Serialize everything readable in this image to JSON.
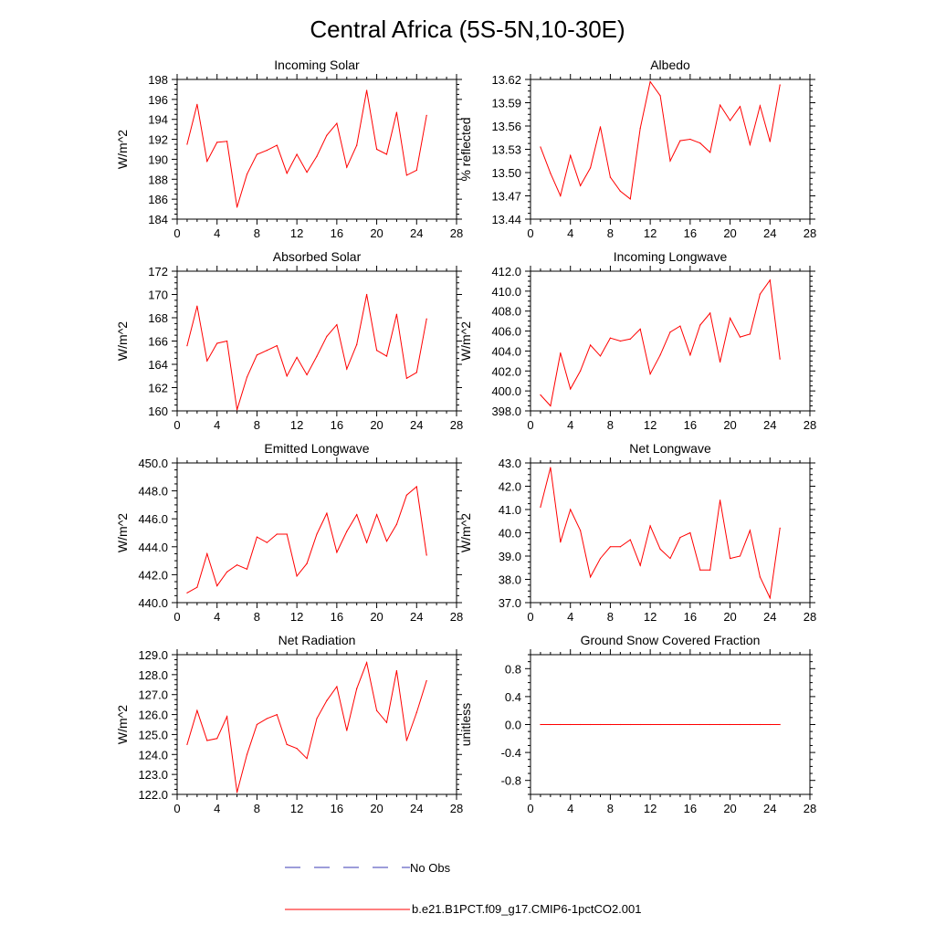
{
  "title": "Central Africa (5S-5N,10-30E)",
  "legend": {
    "items": [
      {
        "label": "No Obs",
        "color": "#3b3bb5",
        "dash": true
      },
      {
        "label": "b.e21.B1PCT.f09_g17.CMIP6-1pctCO2.001",
        "color": "#ff0000",
        "dash": false
      }
    ]
  },
  "chart_data": [
    {
      "type": "line",
      "title": "Incoming Solar",
      "ylabel": "W/m^2",
      "xlim": [
        0,
        28
      ],
      "ylim": [
        184,
        198
      ],
      "xticks": [
        "0",
        "4",
        "8",
        "12",
        "16",
        "20",
        "24",
        "28"
      ],
      "yticks": [
        "184",
        "186",
        "188",
        "190",
        "192",
        "194",
        "196",
        "198"
      ],
      "series": [
        {
          "color": "#ff0000",
          "x": [
            1,
            2,
            3,
            4,
            5,
            6,
            7,
            8,
            9,
            10,
            11,
            12,
            13,
            14,
            15,
            16,
            17,
            18,
            19,
            20,
            21,
            22,
            23,
            24,
            25
          ],
          "values": [
            191.5,
            195.5,
            189.8,
            191.7,
            191.8,
            185.2,
            188.5,
            190.5,
            190.9,
            191.4,
            188.6,
            190.5,
            188.7,
            190.3,
            192.4,
            193.6,
            189.2,
            191.4,
            196.9,
            191.0,
            190.5,
            194.7,
            188.4,
            188.9,
            194.4
          ]
        }
      ]
    },
    {
      "type": "line",
      "title": "Albedo",
      "ylabel": "% reflected",
      "xlim": [
        0,
        28
      ],
      "ylim": [
        13.44,
        13.62
      ],
      "xticks": [
        "0",
        "4",
        "8",
        "12",
        "16",
        "20",
        "24",
        "28"
      ],
      "yticks": [
        "13.44",
        "13.47",
        "13.50",
        "13.53",
        "13.56",
        "13.59",
        "13.62"
      ],
      "series": [
        {
          "color": "#ff0000",
          "x": [
            1,
            2,
            3,
            4,
            5,
            6,
            7,
            8,
            9,
            10,
            11,
            12,
            13,
            14,
            15,
            16,
            17,
            18,
            19,
            20,
            21,
            22,
            23,
            24,
            25
          ],
          "values": [
            13.533,
            13.499,
            13.47,
            13.522,
            13.483,
            13.506,
            13.559,
            13.494,
            13.476,
            13.466,
            13.557,
            13.617,
            13.599,
            13.515,
            13.541,
            13.543,
            13.538,
            13.526,
            13.587,
            13.567,
            13.585,
            13.536,
            13.586,
            13.54,
            13.613
          ]
        }
      ]
    },
    {
      "type": "line",
      "title": "Absorbed Solar",
      "ylabel": "W/m^2",
      "xlim": [
        0,
        28
      ],
      "ylim": [
        160,
        172
      ],
      "xticks": [
        "0",
        "4",
        "8",
        "12",
        "16",
        "20",
        "24",
        "28"
      ],
      "yticks": [
        "160",
        "162",
        "164",
        "166",
        "168",
        "170",
        "172"
      ],
      "series": [
        {
          "color": "#ff0000",
          "x": [
            1,
            2,
            3,
            4,
            5,
            6,
            7,
            8,
            9,
            10,
            11,
            12,
            13,
            14,
            15,
            16,
            17,
            18,
            19,
            20,
            21,
            22,
            23,
            24,
            25
          ],
          "values": [
            165.6,
            169.0,
            164.3,
            165.8,
            166.0,
            160.1,
            162.9,
            164.8,
            165.2,
            165.6,
            163.0,
            164.6,
            163.1,
            164.7,
            166.4,
            167.4,
            163.6,
            165.7,
            170.0,
            165.2,
            164.7,
            168.3,
            162.8,
            163.3,
            167.9
          ]
        }
      ]
    },
    {
      "type": "line",
      "title": "Incoming Longwave",
      "ylabel": "W/m^2",
      "xlim": [
        0,
        28
      ],
      "ylim": [
        398.0,
        412.0
      ],
      "xticks": [
        "0",
        "4",
        "8",
        "12",
        "16",
        "20",
        "24",
        "28"
      ],
      "yticks": [
        "398.0",
        "400.0",
        "402.0",
        "404.0",
        "406.0",
        "408.0",
        "410.0",
        "412.0"
      ],
      "series": [
        {
          "color": "#ff0000",
          "x": [
            1,
            2,
            3,
            4,
            5,
            6,
            7,
            8,
            9,
            10,
            11,
            12,
            13,
            14,
            15,
            16,
            17,
            18,
            19,
            20,
            21,
            22,
            23,
            24,
            25
          ],
          "values": [
            399.6,
            398.5,
            403.8,
            400.2,
            402.0,
            404.6,
            403.5,
            405.3,
            405.0,
            405.2,
            406.2,
            401.7,
            403.6,
            405.9,
            406.5,
            403.6,
            406.6,
            407.8,
            402.9,
            407.3,
            405.4,
            405.7,
            409.7,
            411.1,
            403.2
          ]
        }
      ]
    },
    {
      "type": "line",
      "title": "Emitted Longwave",
      "ylabel": "W/m^2",
      "xlim": [
        0,
        28
      ],
      "ylim": [
        440.0,
        450.0
      ],
      "xticks": [
        "0",
        "4",
        "8",
        "12",
        "16",
        "20",
        "24",
        "28"
      ],
      "yticks": [
        "440.0",
        "442.0",
        "444.0",
        "446.0",
        "448.0",
        "450.0"
      ],
      "series": [
        {
          "color": "#ff0000",
          "x": [
            1,
            2,
            3,
            4,
            5,
            6,
            7,
            8,
            9,
            10,
            11,
            12,
            13,
            14,
            15,
            16,
            17,
            18,
            19,
            20,
            21,
            22,
            23,
            24,
            25
          ],
          "values": [
            440.7,
            441.1,
            443.5,
            441.2,
            442.2,
            442.7,
            442.4,
            444.7,
            444.3,
            444.9,
            444.9,
            441.9,
            442.8,
            444.9,
            446.4,
            443.6,
            445.1,
            446.3,
            444.3,
            446.3,
            444.4,
            445.6,
            447.7,
            448.3,
            443.4
          ]
        }
      ]
    },
    {
      "type": "line",
      "title": "Net Longwave",
      "ylabel": "W/m^2",
      "xlim": [
        0,
        28
      ],
      "ylim": [
        37.0,
        43.0
      ],
      "xticks": [
        "0",
        "4",
        "8",
        "12",
        "16",
        "20",
        "24",
        "28"
      ],
      "yticks": [
        "37.0",
        "38.0",
        "39.0",
        "40.0",
        "41.0",
        "42.0",
        "43.0"
      ],
      "series": [
        {
          "color": "#ff0000",
          "x": [
            1,
            2,
            3,
            4,
            5,
            6,
            7,
            8,
            9,
            10,
            11,
            12,
            13,
            14,
            15,
            16,
            17,
            18,
            19,
            20,
            21,
            22,
            23,
            24,
            25
          ],
          "values": [
            41.1,
            42.8,
            39.6,
            41.0,
            40.1,
            38.1,
            38.9,
            39.4,
            39.4,
            39.7,
            38.6,
            40.3,
            39.3,
            38.9,
            39.8,
            40.0,
            38.4,
            38.4,
            41.4,
            38.9,
            39.0,
            40.1,
            38.1,
            37.2,
            40.2
          ]
        }
      ]
    },
    {
      "type": "line",
      "title": "Net Radiation",
      "ylabel": "W/m^2",
      "xlim": [
        0,
        28
      ],
      "ylim": [
        122.0,
        129.0
      ],
      "xticks": [
        "0",
        "4",
        "8",
        "12",
        "16",
        "20",
        "24",
        "28"
      ],
      "yticks": [
        "122.0",
        "123.0",
        "124.0",
        "125.0",
        "126.0",
        "127.0",
        "128.0",
        "129.0"
      ],
      "series": [
        {
          "color": "#ff0000",
          "x": [
            1,
            2,
            3,
            4,
            5,
            6,
            7,
            8,
            9,
            10,
            11,
            12,
            13,
            14,
            15,
            16,
            17,
            18,
            19,
            20,
            21,
            22,
            23,
            24,
            25
          ],
          "values": [
            124.5,
            126.2,
            124.7,
            124.8,
            125.9,
            122.1,
            124.0,
            125.5,
            125.8,
            126.0,
            124.5,
            124.3,
            123.8,
            125.8,
            126.7,
            127.4,
            125.2,
            127.3,
            128.6,
            126.2,
            125.6,
            128.2,
            124.7,
            126.1,
            127.7
          ]
        }
      ]
    },
    {
      "type": "line",
      "title": "Ground Snow Covered Fraction",
      "ylabel": "unitless",
      "xlim": [
        0,
        28
      ],
      "ylim": [
        -1.0,
        1.0
      ],
      "xticks": [
        "0",
        "4",
        "8",
        "12",
        "16",
        "20",
        "24",
        "28"
      ],
      "yticks": [
        "-0.8",
        "-0.4",
        "0.0",
        "0.4",
        "0.8"
      ],
      "series": [
        {
          "color": "#ff0000",
          "x": [
            1,
            2,
            3,
            4,
            5,
            6,
            7,
            8,
            9,
            10,
            11,
            12,
            13,
            14,
            15,
            16,
            17,
            18,
            19,
            20,
            21,
            22,
            23,
            24,
            25
          ],
          "values": [
            0,
            0,
            0,
            0,
            0,
            0,
            0,
            0,
            0,
            0,
            0,
            0,
            0,
            0,
            0,
            0,
            0,
            0,
            0,
            0,
            0,
            0,
            0,
            0,
            0
          ]
        }
      ]
    }
  ]
}
